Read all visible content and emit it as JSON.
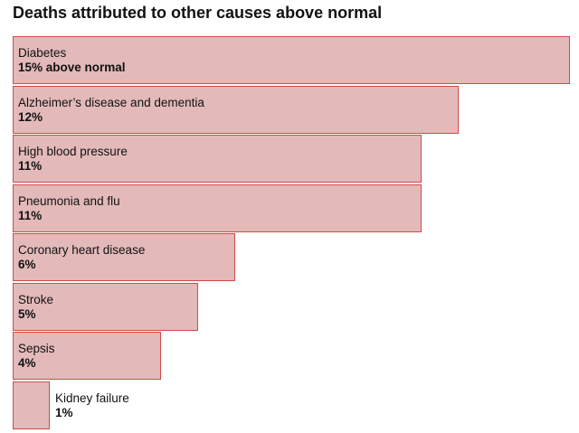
{
  "chart_data": {
    "type": "bar",
    "orientation": "horizontal",
    "title": "Deaths attributed to other causes above normal",
    "categories": [
      "Diabetes",
      "Alzheimer’s disease and dementia",
      "High blood pressure",
      "Pneumonia and flu",
      "Coronary heart disease",
      "Stroke",
      "Sepsis",
      "Kidney failure"
    ],
    "values": [
      15,
      12,
      11,
      11,
      6,
      5,
      4,
      1
    ],
    "value_labels": [
      "15% above normal",
      "12%",
      "11%",
      "11%",
      "6%",
      "5%",
      "4%",
      "1%"
    ],
    "unit": "%",
    "colors": {
      "fill": "#e3b9b9",
      "stroke": "#d24a4a"
    }
  }
}
